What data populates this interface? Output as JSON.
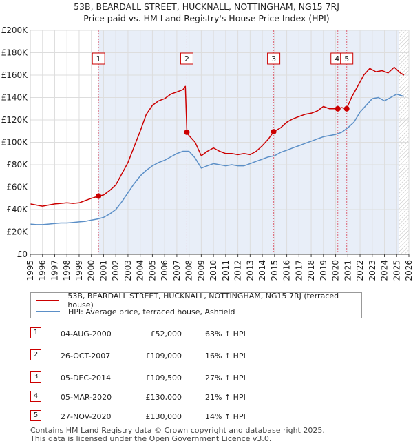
{
  "title_line1": "53B, BEARDALL STREET, HUCKNALL, NOTTINGHAM, NG15 7RJ",
  "title_line2": "Price paid vs. HM Land Registry's House Price Index (HPI)",
  "colors": {
    "property": "#cc0000",
    "hpi": "#5b8fc7",
    "shade": "#e8eef8",
    "grid": "#dddddd",
    "vline": "#dd6677"
  },
  "legend": {
    "property": "53B, BEARDALL STREET, HUCKNALL, NOTTINGHAM, NG15 7RJ (terraced house)",
    "hpi": "HPI: Average price, terraced house, Ashfield"
  },
  "transactions": [
    {
      "num": "1",
      "date": "04-AUG-2000",
      "price": "£52,000",
      "hpi": "63% ↑ HPI"
    },
    {
      "num": "2",
      "date": "26-OCT-2007",
      "price": "£109,000",
      "hpi": "16% ↑ HPI"
    },
    {
      "num": "3",
      "date": "05-DEC-2014",
      "price": "£109,500",
      "hpi": "27% ↑ HPI"
    },
    {
      "num": "4",
      "date": "05-MAR-2020",
      "price": "£130,000",
      "hpi": "21% ↑ HPI"
    },
    {
      "num": "5",
      "date": "27-NOV-2020",
      "price": "£130,000",
      "hpi": "14% ↑ HPI"
    }
  ],
  "footer_line1": "Contains HM Land Registry data © Crown copyright and database right 2025.",
  "footer_line2": "This data is licensed under the Open Government Licence v3.0.",
  "chart_data": {
    "type": "line",
    "title": "53B, BEARDALL STREET, HUCKNALL, NOTTINGHAM, NG15 7RJ",
    "subtitle": "Price paid vs. HM Land Registry's House Price Index (HPI)",
    "xlabel": "",
    "ylabel": "",
    "xlim": [
      1995,
      2026
    ],
    "ylim": [
      0,
      200000
    ],
    "y_ticks": [
      0,
      20000,
      40000,
      60000,
      80000,
      100000,
      120000,
      140000,
      160000,
      180000,
      200000
    ],
    "y_tick_labels": [
      "£0",
      "£20K",
      "£40K",
      "£60K",
      "£80K",
      "£100K",
      "£120K",
      "£140K",
      "£160K",
      "£180K",
      "£200K"
    ],
    "x_ticks": [
      1995,
      1996,
      1997,
      1998,
      1999,
      2000,
      2001,
      2002,
      2003,
      2004,
      2005,
      2006,
      2007,
      2008,
      2009,
      2010,
      2011,
      2012,
      2013,
      2014,
      2015,
      2016,
      2017,
      2018,
      2019,
      2020,
      2021,
      2022,
      2023,
      2024,
      2025,
      2026
    ],
    "x_tick_labels": [
      "1995",
      "1996",
      "1997",
      "1998",
      "1999",
      "2000",
      "2001",
      "2002",
      "2003",
      "2004",
      "2005",
      "2006",
      "2007",
      "2008",
      "2009",
      "2010",
      "2011",
      "2012",
      "2013",
      "2014",
      "2015",
      "2016",
      "2017",
      "2018",
      "2019",
      "2020",
      "2021",
      "2022",
      "2023",
      "2024",
      "2025",
      "2026"
    ],
    "shaded_range": [
      2000.59,
      2025.2
    ],
    "forecast_start": 2025.2,
    "series": [
      {
        "name": "53B, BEARDALL STREET, HUCKNALL, NOTTINGHAM, NG15 7RJ (terraced house)",
        "x": [
          1995,
          1995.5,
          1996,
          1996.5,
          1997,
          1997.5,
          1998,
          1998.5,
          1999,
          1999.5,
          2000,
          2000.59,
          2001,
          2001.5,
          2002,
          2002.5,
          2003,
          2003.5,
          2004,
          2004.5,
          2005,
          2005.5,
          2006,
          2006.5,
          2007,
          2007.5,
          2007.7,
          2007.82,
          2008,
          2008.5,
          2009,
          2009.5,
          2010,
          2010.5,
          2011,
          2011.5,
          2012,
          2012.5,
          2013,
          2013.5,
          2014,
          2014.5,
          2014.93,
          2015.5,
          2016,
          2016.5,
          2017,
          2017.5,
          2018,
          2018.5,
          2019,
          2019.5,
          2020.18,
          2020.5,
          2020.9,
          2021.3,
          2021.8,
          2022.3,
          2022.8,
          2023.3,
          2023.8,
          2024.3,
          2024.8,
          2025.3,
          2025.6
        ],
        "values": [
          45000,
          44000,
          43000,
          44000,
          45000,
          45500,
          46000,
          45500,
          46000,
          48000,
          50000,
          52000,
          53000,
          57000,
          62000,
          72000,
          82000,
          96000,
          110000,
          125000,
          133000,
          137000,
          139000,
          143000,
          145000,
          147000,
          150000,
          109000,
          106000,
          100000,
          88000,
          92000,
          95000,
          92000,
          90000,
          90000,
          89000,
          90000,
          89000,
          92000,
          97000,
          103000,
          109500,
          113000,
          118000,
          121000,
          123000,
          125000,
          126000,
          128000,
          132000,
          130000,
          130000,
          131000,
          130000,
          140000,
          150000,
          160000,
          166000,
          163000,
          164000,
          162000,
          167000,
          162000,
          160000
        ]
      },
      {
        "name": "HPI: Average price, terraced house, Ashfield",
        "x": [
          1995,
          1995.5,
          1996,
          1996.5,
          1997,
          1997.5,
          1998,
          1998.5,
          1999,
          1999.5,
          2000,
          2000.5,
          2001,
          2001.5,
          2002,
          2002.5,
          2003,
          2003.5,
          2004,
          2004.5,
          2005,
          2005.5,
          2006,
          2006.5,
          2007,
          2007.5,
          2008,
          2008.5,
          2009,
          2009.5,
          2010,
          2010.5,
          2011,
          2011.5,
          2012,
          2012.5,
          2013,
          2013.5,
          2014,
          2014.5,
          2015,
          2015.5,
          2016,
          2016.5,
          2017,
          2017.5,
          2018,
          2018.5,
          2019,
          2019.5,
          2020,
          2020.5,
          2021,
          2021.5,
          2022,
          2022.5,
          2023,
          2023.5,
          2024,
          2024.5,
          2025,
          2025.6
        ],
        "values": [
          27000,
          26500,
          26500,
          27000,
          27500,
          28000,
          28000,
          28500,
          29000,
          29500,
          30500,
          31500,
          33000,
          36000,
          40000,
          47000,
          55000,
          63000,
          70000,
          75000,
          79000,
          82000,
          84000,
          87000,
          90000,
          92000,
          92000,
          86000,
          77000,
          79000,
          81000,
          80000,
          79000,
          80000,
          79000,
          79000,
          81000,
          83000,
          85000,
          87000,
          88000,
          91000,
          93000,
          95000,
          97000,
          99000,
          101000,
          103000,
          105000,
          106000,
          107000,
          109000,
          113000,
          118000,
          127000,
          133000,
          139000,
          140000,
          137000,
          140000,
          143000,
          141000
        ]
      }
    ],
    "markers": [
      {
        "label": "1",
        "x": 2000.59,
        "y": 52000
      },
      {
        "label": "2",
        "x": 2007.82,
        "y": 109000
      },
      {
        "label": "3",
        "x": 2014.93,
        "y": 109500
      },
      {
        "label": "4",
        "x": 2020.18,
        "y": 130000
      },
      {
        "label": "5",
        "x": 2020.91,
        "y": 130000
      }
    ]
  }
}
